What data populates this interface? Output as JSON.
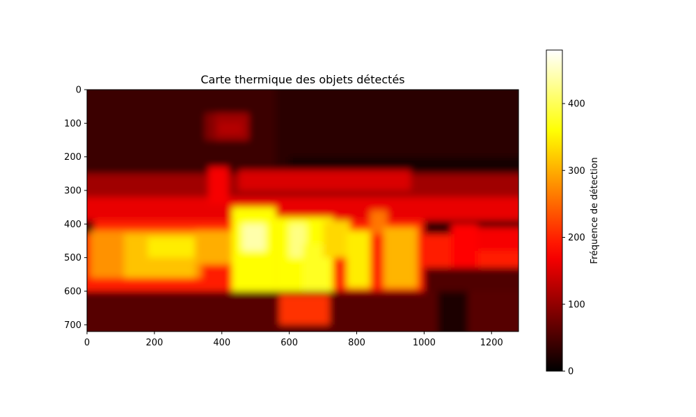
{
  "chart_data": {
    "type": "heatmap",
    "title": "Carte thermique des objets détectés",
    "xlabel": "",
    "ylabel": "",
    "xlim": [
      0,
      1280
    ],
    "ylim": [
      720,
      0
    ],
    "x_ticks": [
      0,
      200,
      400,
      600,
      800,
      1000,
      1200
    ],
    "y_ticks": [
      0,
      100,
      200,
      300,
      400,
      500,
      600,
      700
    ],
    "x_tick_labels": [
      "0",
      "200",
      "400",
      "600",
      "800",
      "1000",
      "1200"
    ],
    "y_tick_labels": [
      "0",
      "100",
      "200",
      "300",
      "400",
      "500",
      "600",
      "700"
    ],
    "colormap": "hot",
    "colorbar": {
      "label": "Fréquence de détection",
      "range": [
        0,
        480
      ],
      "ticks": [
        0,
        100,
        200,
        300,
        400
      ],
      "tick_labels": [
        "0",
        "100",
        "200",
        "300",
        "400"
      ]
    },
    "grid": false,
    "regions": [
      {
        "x": [
          0,
          1280
        ],
        "y": [
          0,
          720
        ],
        "value": 30
      },
      {
        "x": [
          0,
          560
        ],
        "y": [
          0,
          250
        ],
        "value": 40
      },
      {
        "x": [
          600,
          1280
        ],
        "y": [
          200,
          280
        ],
        "value": 15
      },
      {
        "x": [
          0,
          1280
        ],
        "y": [
          250,
          320
        ],
        "value": 110
      },
      {
        "x": [
          0,
          1280
        ],
        "y": [
          320,
          390
        ],
        "value": 160
      },
      {
        "x": [
          360,
          420
        ],
        "y": [
          230,
          340
        ],
        "value": 170
      },
      {
        "x": [
          450,
          960
        ],
        "y": [
          240,
          300
        ],
        "value": 150
      },
      {
        "x": [
          350,
          410
        ],
        "y": [
          70,
          150
        ],
        "value": 90
      },
      {
        "x": [
          380,
          480
        ],
        "y": [
          70,
          150
        ],
        "value": 110
      },
      {
        "x": [
          390,
          460
        ],
        "y": [
          100,
          130
        ],
        "value": 125
      },
      {
        "x": [
          20,
          1000
        ],
        "y": [
          390,
          430
        ],
        "value": 200
      },
      {
        "x": [
          0,
          1280
        ],
        "y": [
          430,
          600
        ],
        "value": 195
      },
      {
        "x": [
          10,
          340
        ],
        "y": [
          420,
          560
        ],
        "value": 280
      },
      {
        "x": [
          110,
          320
        ],
        "y": [
          430,
          560
        ],
        "value": 315
      },
      {
        "x": [
          180,
          360
        ],
        "y": [
          440,
          500
        ],
        "value": 345
      },
      {
        "x": [
          320,
          470
        ],
        "y": [
          420,
          520
        ],
        "value": 300
      },
      {
        "x": [
          430,
          560
        ],
        "y": [
          350,
          610
        ],
        "value": 360
      },
      {
        "x": [
          460,
          530
        ],
        "y": [
          400,
          480
        ],
        "value": 440
      },
      {
        "x": [
          560,
          730
        ],
        "y": [
          380,
          600
        ],
        "value": 360
      },
      {
        "x": [
          600,
          650
        ],
        "y": [
          400,
          500
        ],
        "value": 420
      },
      {
        "x": [
          640,
          720
        ],
        "y": [
          460,
          640
        ],
        "value": 375
      },
      {
        "x": [
          700,
          780
        ],
        "y": [
          390,
          500
        ],
        "value": 330
      },
      {
        "x": [
          770,
          840
        ],
        "y": [
          420,
          590
        ],
        "value": 345
      },
      {
        "x": [
          840,
          890
        ],
        "y": [
          360,
          430
        ],
        "value": 260
      },
      {
        "x": [
          880,
          980
        ],
        "y": [
          410,
          590
        ],
        "value": 305
      },
      {
        "x": [
          1080,
          1160
        ],
        "y": [
          400,
          530
        ],
        "value": 175
      },
      {
        "x": [
          1160,
          1280
        ],
        "y": [
          410,
          480
        ],
        "value": 170
      },
      {
        "x": [
          1000,
          1280
        ],
        "y": [
          530,
          720
        ],
        "value": 55
      },
      {
        "x": [
          0,
          1280
        ],
        "y": [
          600,
          720
        ],
        "value": 60
      },
      {
        "x": [
          570,
          720
        ],
        "y": [
          610,
          700
        ],
        "value": 210
      },
      {
        "x": [
          1040,
          1130
        ],
        "y": [
          600,
          720
        ],
        "value": 20
      }
    ]
  }
}
